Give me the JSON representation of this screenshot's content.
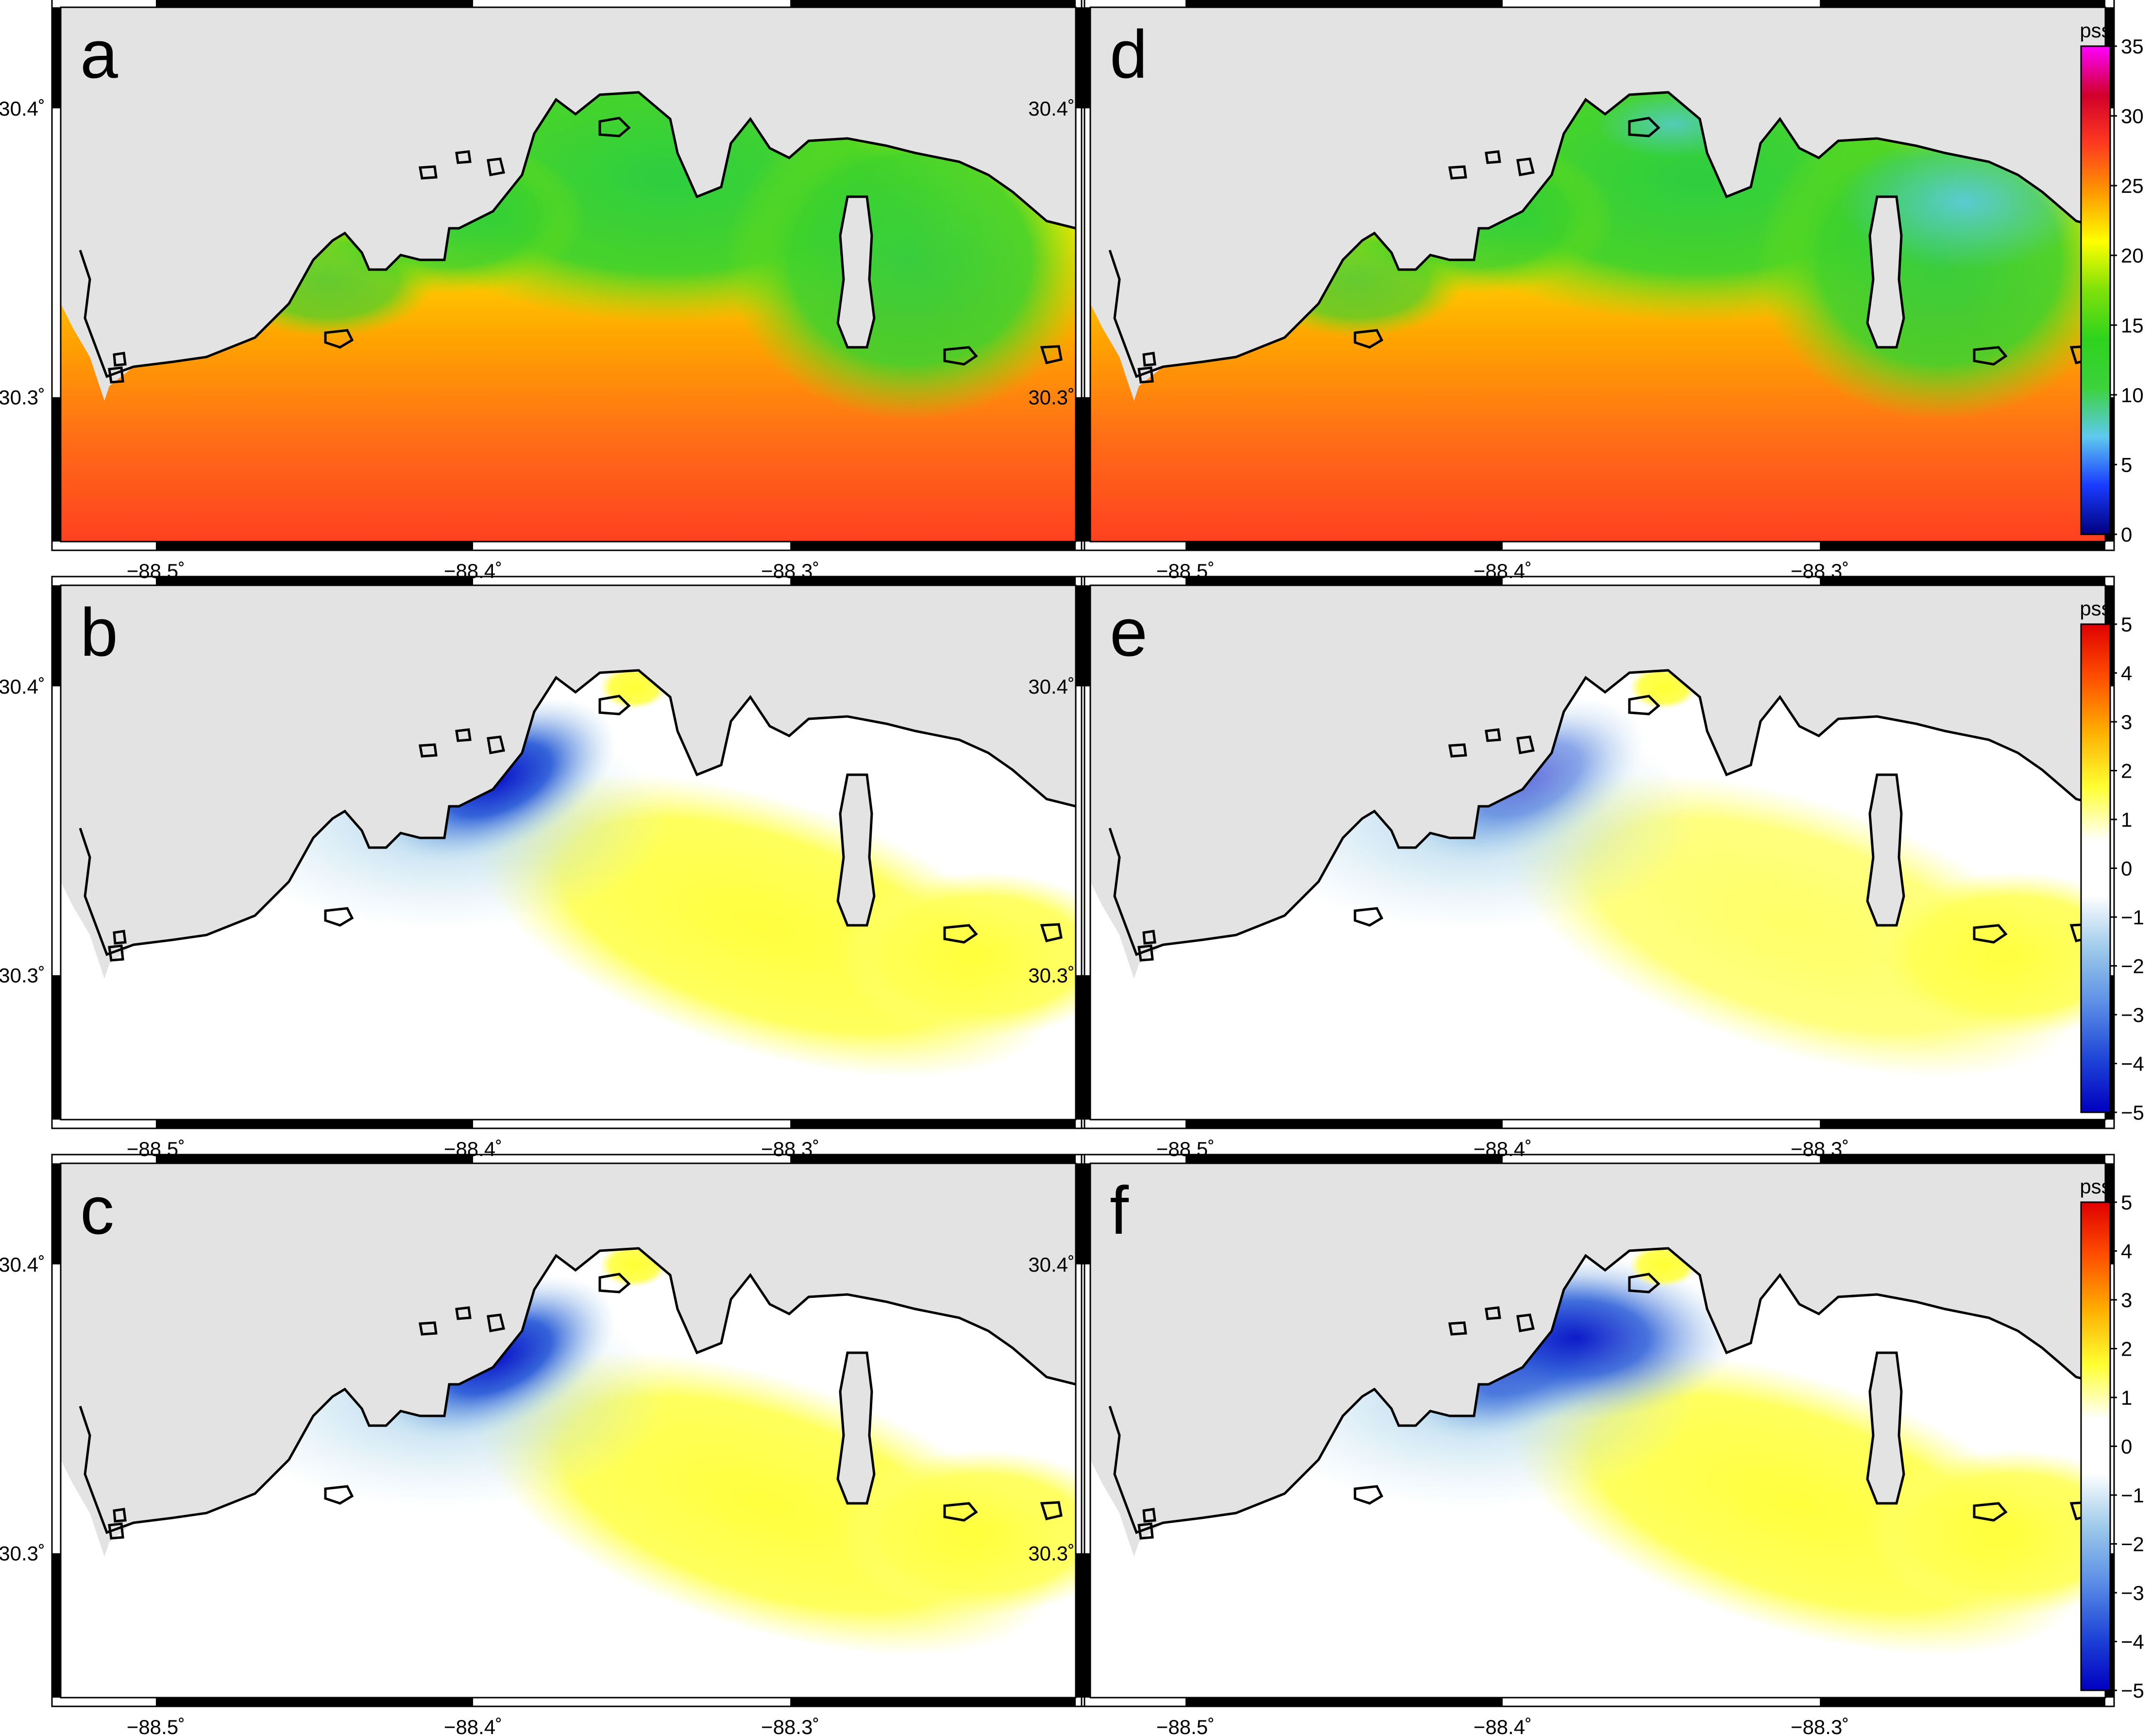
{
  "figure": {
    "panels": [
      {
        "label": "a",
        "column": 0,
        "row": 0,
        "field": "salinity"
      },
      {
        "label": "b",
        "column": 0,
        "row": 1,
        "field": "difference"
      },
      {
        "label": "c",
        "column": 0,
        "row": 2,
        "field": "difference"
      },
      {
        "label": "d",
        "column": 1,
        "row": 0,
        "field": "salinity"
      },
      {
        "label": "e",
        "column": 1,
        "row": 1,
        "field": "difference"
      },
      {
        "label": "f",
        "column": 1,
        "row": 2,
        "field": "difference"
      }
    ],
    "x_ticks": [
      "−88.5˚",
      "−88.4˚",
      "−88.3˚"
    ],
    "x_tick_values": [
      -88.5,
      -88.4,
      -88.3
    ],
    "y_ticks": [
      "30.4˚",
      "30.3˚"
    ],
    "y_tick_values": [
      30.4,
      30.3
    ],
    "lon_range": [
      -88.53,
      -88.21
    ],
    "lat_range": [
      30.25,
      30.435
    ],
    "colorbars": [
      {
        "row": 0,
        "unit": "pss",
        "ticks": [
          "0",
          "5",
          "10",
          "15",
          "20",
          "25",
          "30",
          "35"
        ],
        "min": 0,
        "max": 35,
        "colors": [
          "#00007f",
          "#1a3bff",
          "#5ec9ee",
          "#3cd23c",
          "#2ed31e",
          "#7fe10a",
          "#ffff00",
          "#ff9900",
          "#ff3a20",
          "#d0002a",
          "#ff00ff"
        ]
      },
      {
        "row": 1,
        "unit": "pss",
        "ticks": [
          "−5",
          "−4",
          "−3",
          "−2",
          "−1",
          "0",
          "1",
          "2",
          "3",
          "4",
          "5"
        ],
        "min": -5,
        "max": 5,
        "colors": [
          "#0000c0",
          "#1f46d8",
          "#5b8ee6",
          "#9cc9ea",
          "#ffffff",
          "#ffffff",
          "#ffff33",
          "#ffb000",
          "#ff5000",
          "#e00000"
        ]
      },
      {
        "row": 2,
        "unit": "pss",
        "ticks": [
          "−5",
          "−4",
          "−3",
          "−2",
          "−1",
          "0",
          "1",
          "2",
          "3",
          "4",
          "5"
        ],
        "min": -5,
        "max": 5,
        "colors": [
          "#0000c0",
          "#1f46d8",
          "#5b8ee6",
          "#9cc9ea",
          "#ffffff",
          "#ffffff",
          "#ffff33",
          "#ffb000",
          "#ff5000",
          "#e00000"
        ]
      }
    ]
  }
}
